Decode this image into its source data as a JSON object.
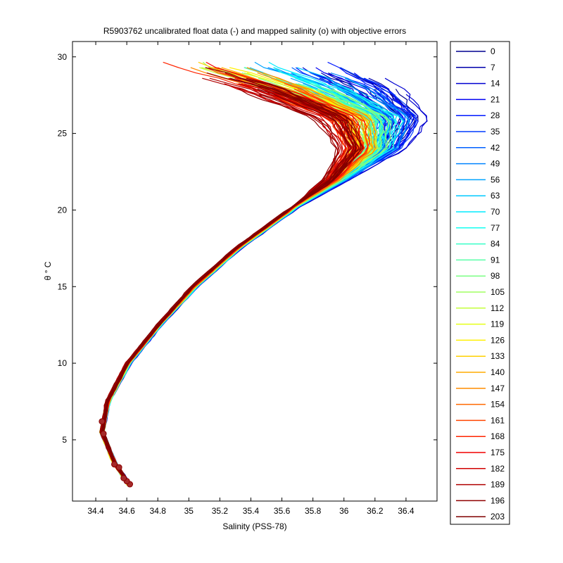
{
  "chart_data": {
    "type": "line",
    "title": "R5903762 uncalibrated float data (-) and mapped salinity (o) with objective errors",
    "xlabel": "Salinity (PSS-78)",
    "ylabel": "θ ° C",
    "xlim": [
      34.25,
      36.6
    ],
    "ylim": [
      1.0,
      31.0
    ],
    "x_ticks": [
      34.4,
      34.6,
      34.8,
      35,
      35.2,
      35.4,
      35.6,
      35.8,
      36,
      36.2,
      36.4
    ],
    "x_tick_labels": [
      "34.4",
      "34.6",
      "34.8",
      "35",
      "35.2",
      "35.4",
      "35.6",
      "35.8",
      "36",
      "36.2",
      "36.4"
    ],
    "y_ticks": [
      5,
      10,
      15,
      20,
      25,
      30
    ],
    "y_tick_labels": [
      "5",
      "10",
      "15",
      "20",
      "25",
      "30"
    ],
    "grid": false,
    "legend_position": "outside-right",
    "colormap": "jet",
    "series": [
      {
        "name": "0",
        "color": "#00008f"
      },
      {
        "name": "7",
        "color": "#0000ab"
      },
      {
        "name": "14",
        "color": "#0000d1"
      },
      {
        "name": "21",
        "color": "#0000f2"
      },
      {
        "name": "28",
        "color": "#0018ff"
      },
      {
        "name": "35",
        "color": "#003cff"
      },
      {
        "name": "42",
        "color": "#0060ff"
      },
      {
        "name": "49",
        "color": "#0084ff"
      },
      {
        "name": "56",
        "color": "#00a4ff"
      },
      {
        "name": "63",
        "color": "#00c8ff"
      },
      {
        "name": "70",
        "color": "#00ecff"
      },
      {
        "name": "77",
        "color": "#14fff0"
      },
      {
        "name": "84",
        "color": "#38ffc8"
      },
      {
        "name": "91",
        "color": "#58ffa8"
      },
      {
        "name": "98",
        "color": "#7cff84"
      },
      {
        "name": "105",
        "color": "#a0ff60"
      },
      {
        "name": "112",
        "color": "#c4ff3c"
      },
      {
        "name": "119",
        "color": "#e4ff18"
      },
      {
        "name": "126",
        "color": "#fff000"
      },
      {
        "name": "133",
        "color": "#ffd000"
      },
      {
        "name": "140",
        "color": "#ffac00"
      },
      {
        "name": "147",
        "color": "#ff8c00"
      },
      {
        "name": "154",
        "color": "#ff6800"
      },
      {
        "name": "161",
        "color": "#ff4400"
      },
      {
        "name": "168",
        "color": "#ff2400"
      },
      {
        "name": "175",
        "color": "#f20000"
      },
      {
        "name": "182",
        "color": "#d10000"
      },
      {
        "name": "189",
        "color": "#b00000"
      },
      {
        "name": "196",
        "color": "#900000"
      },
      {
        "name": "203",
        "color": "#800000"
      }
    ],
    "profile_shape": {
      "description_points_theta": [
        2.0,
        3.5,
        5.5,
        7.5,
        10.0,
        12.5,
        15.0,
        17.5,
        20.0,
        22.0,
        24.0,
        26.0,
        28.0,
        29.5
      ],
      "blue_salinity": [
        34.62,
        34.52,
        34.44,
        34.48,
        34.62,
        34.82,
        35.05,
        35.33,
        35.68,
        36.0,
        36.32,
        36.45,
        36.25,
        35.95
      ],
      "red_salinity": [
        34.62,
        34.52,
        34.44,
        34.47,
        34.6,
        34.8,
        35.02,
        35.3,
        35.64,
        35.9,
        36.02,
        35.9,
        35.4,
        34.85
      ],
      "yellow_salinity": [
        34.62,
        34.52,
        34.44,
        34.48,
        34.61,
        34.81,
        35.04,
        35.32,
        35.66,
        35.95,
        36.18,
        36.15,
        35.7,
        35.25
      ]
    }
  }
}
